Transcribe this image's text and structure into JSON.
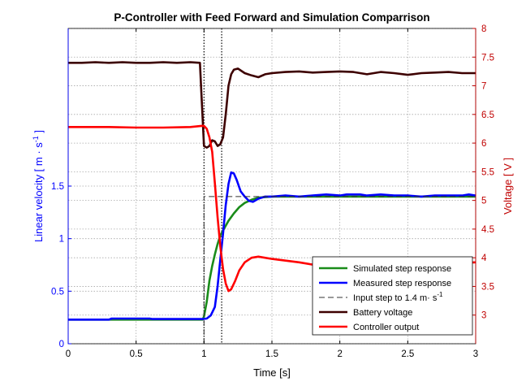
{
  "chart_data": {
    "type": "line",
    "title": "P-Controller with Feed Forward and Simulation Comparrison",
    "xlabel": "Time [s]",
    "ylabel_left": "Linear velocity [ m · s",
    "ylabel_left_exp": "-1",
    "ylabel_left_close": " ]",
    "ylabel_right": "Voltage [ V ]",
    "xlim": [
      0,
      3
    ],
    "ylim_left": [
      0,
      3
    ],
    "ylim_right": [
      2.5,
      8
    ],
    "x_ticks": [
      "0",
      "0.5",
      "1",
      "1.5",
      "2",
      "2.5",
      "3"
    ],
    "y_left_ticks": [
      "0",
      "0.5",
      "1",
      "1.5"
    ],
    "y_right_ticks": [
      "3",
      "3.5",
      "4",
      "4.5",
      "5",
      "5.5",
      "6",
      "6.5",
      "7",
      "7.5",
      "8"
    ],
    "grid": true,
    "legend_position": "bottom-right",
    "vlines": [
      1.0,
      1.13
    ],
    "colors": {
      "left_axis": "#0000ff",
      "right_axis": "#c00000"
    },
    "series": [
      {
        "name": "Simulated step response",
        "axis": "left",
        "color": "#1a8c1a",
        "style": "solid",
        "points": [
          [
            0,
            0.23
          ],
          [
            0.99,
            0.23
          ],
          [
            1.0,
            0.26
          ],
          [
            1.02,
            0.4
          ],
          [
            1.04,
            0.6
          ],
          [
            1.06,
            0.74
          ],
          [
            1.08,
            0.85
          ],
          [
            1.1,
            0.95
          ],
          [
            1.12,
            1.03
          ],
          [
            1.15,
            1.1
          ],
          [
            1.18,
            1.17
          ],
          [
            1.22,
            1.24
          ],
          [
            1.26,
            1.3
          ],
          [
            1.3,
            1.34
          ],
          [
            1.35,
            1.37
          ],
          [
            1.4,
            1.39
          ],
          [
            1.45,
            1.395
          ],
          [
            1.5,
            1.4
          ],
          [
            3.0,
            1.4
          ]
        ]
      },
      {
        "name": "Measured step response",
        "axis": "left",
        "color": "#0000ff",
        "style": "solid",
        "points": [
          [
            0,
            0.23
          ],
          [
            0.3,
            0.23
          ],
          [
            0.32,
            0.24
          ],
          [
            0.6,
            0.24
          ],
          [
            0.62,
            0.235
          ],
          [
            0.99,
            0.235
          ],
          [
            1.02,
            0.24
          ],
          [
            1.05,
            0.27
          ],
          [
            1.08,
            0.35
          ],
          [
            1.1,
            0.55
          ],
          [
            1.12,
            0.8
          ],
          [
            1.14,
            1.05
          ],
          [
            1.16,
            1.32
          ],
          [
            1.18,
            1.52
          ],
          [
            1.2,
            1.63
          ],
          [
            1.22,
            1.62
          ],
          [
            1.24,
            1.56
          ],
          [
            1.27,
            1.45
          ],
          [
            1.3,
            1.4
          ],
          [
            1.33,
            1.36
          ],
          [
            1.36,
            1.35
          ],
          [
            1.4,
            1.38
          ],
          [
            1.45,
            1.4
          ],
          [
            1.5,
            1.4
          ],
          [
            1.6,
            1.41
          ],
          [
            1.7,
            1.4
          ],
          [
            1.8,
            1.41
          ],
          [
            1.9,
            1.42
          ],
          [
            2.0,
            1.41
          ],
          [
            2.05,
            1.42
          ],
          [
            2.15,
            1.42
          ],
          [
            2.2,
            1.41
          ],
          [
            2.3,
            1.42
          ],
          [
            2.4,
            1.41
          ],
          [
            2.5,
            1.41
          ],
          [
            2.6,
            1.4
          ],
          [
            2.7,
            1.41
          ],
          [
            2.8,
            1.41
          ],
          [
            2.9,
            1.41
          ],
          [
            2.95,
            1.42
          ],
          [
            3.0,
            1.41
          ]
        ]
      },
      {
        "name": "Input step to 1.4 m· s",
        "name_exp": "-1",
        "axis": "left",
        "color": "#333333",
        "style": "dashed",
        "points": [
          [
            1.0,
            0
          ],
          [
            1.0,
            1.4
          ],
          [
            3.0,
            1.4
          ]
        ]
      },
      {
        "name": "Battery voltage",
        "axis": "right",
        "color": "#3d0000",
        "style": "solid",
        "points": [
          [
            0,
            7.4
          ],
          [
            0.1,
            7.4
          ],
          [
            0.2,
            7.41
          ],
          [
            0.3,
            7.4
          ],
          [
            0.4,
            7.41
          ],
          [
            0.5,
            7.4
          ],
          [
            0.6,
            7.4
          ],
          [
            0.7,
            7.41
          ],
          [
            0.8,
            7.4
          ],
          [
            0.9,
            7.41
          ],
          [
            0.97,
            7.4
          ],
          [
            0.98,
            6.9
          ],
          [
            1.0,
            5.95
          ],
          [
            1.02,
            5.92
          ],
          [
            1.04,
            5.95
          ],
          [
            1.06,
            6.05
          ],
          [
            1.08,
            6.03
          ],
          [
            1.1,
            5.95
          ],
          [
            1.12,
            5.98
          ],
          [
            1.14,
            6.1
          ],
          [
            1.16,
            6.5
          ],
          [
            1.18,
            7.0
          ],
          [
            1.2,
            7.2
          ],
          [
            1.22,
            7.28
          ],
          [
            1.25,
            7.3
          ],
          [
            1.3,
            7.22
          ],
          [
            1.35,
            7.18
          ],
          [
            1.4,
            7.15
          ],
          [
            1.45,
            7.2
          ],
          [
            1.5,
            7.22
          ],
          [
            1.6,
            7.24
          ],
          [
            1.7,
            7.25
          ],
          [
            1.8,
            7.23
          ],
          [
            1.9,
            7.24
          ],
          [
            2.0,
            7.25
          ],
          [
            2.1,
            7.24
          ],
          [
            2.2,
            7.2
          ],
          [
            2.3,
            7.24
          ],
          [
            2.4,
            7.22
          ],
          [
            2.5,
            7.19
          ],
          [
            2.6,
            7.22
          ],
          [
            2.7,
            7.23
          ],
          [
            2.8,
            7.24
          ],
          [
            2.9,
            7.22
          ],
          [
            3.0,
            7.22
          ]
        ]
      },
      {
        "name": "Controller output",
        "axis": "right",
        "color": "#ff0000",
        "style": "solid",
        "points": [
          [
            0,
            6.28
          ],
          [
            0.3,
            6.28
          ],
          [
            0.5,
            6.27
          ],
          [
            0.7,
            6.27
          ],
          [
            0.9,
            6.28
          ],
          [
            0.98,
            6.3
          ],
          [
            1.0,
            6.3
          ],
          [
            1.02,
            6.25
          ],
          [
            1.04,
            6.1
          ],
          [
            1.06,
            5.85
          ],
          [
            1.08,
            5.3
          ],
          [
            1.1,
            4.7
          ],
          [
            1.12,
            4.2
          ],
          [
            1.14,
            3.8
          ],
          [
            1.16,
            3.55
          ],
          [
            1.18,
            3.42
          ],
          [
            1.2,
            3.45
          ],
          [
            1.23,
            3.6
          ],
          [
            1.26,
            3.78
          ],
          [
            1.3,
            3.92
          ],
          [
            1.35,
            4.0
          ],
          [
            1.4,
            4.02
          ],
          [
            1.5,
            3.98
          ],
          [
            1.6,
            3.95
          ],
          [
            1.7,
            3.92
          ],
          [
            1.8,
            3.88
          ],
          [
            1.9,
            3.86
          ],
          [
            2.0,
            3.87
          ],
          [
            2.1,
            3.9
          ],
          [
            2.2,
            3.92
          ],
          [
            2.3,
            3.9
          ],
          [
            2.4,
            3.93
          ],
          [
            2.5,
            3.92
          ],
          [
            2.6,
            3.9
          ],
          [
            2.7,
            3.9
          ],
          [
            2.8,
            3.92
          ],
          [
            2.9,
            3.91
          ],
          [
            3.0,
            3.92
          ]
        ]
      }
    ]
  }
}
